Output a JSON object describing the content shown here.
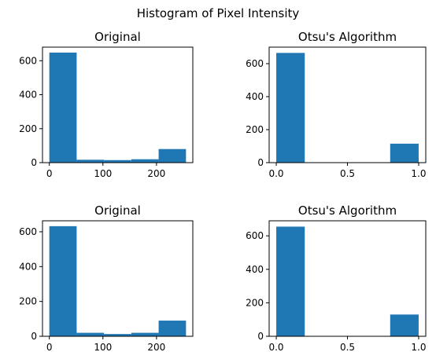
{
  "figure": {
    "title": "Histogram of Pixel Intensity"
  },
  "colors": {
    "bar": "#1f77b4",
    "axis": "#000000"
  },
  "chart_data": [
    {
      "type": "bar",
      "title": "Original",
      "bin_edges": [
        0,
        51,
        102,
        153,
        204,
        255
      ],
      "values": [
        648,
        17,
        15,
        20,
        80
      ],
      "xlim": [
        -12.75,
        267.75
      ],
      "ylim": [
        0,
        680
      ],
      "xticks": [
        0,
        100,
        200
      ],
      "yticks": [
        0,
        200,
        400,
        600
      ],
      "xtick_labels": [
        "0",
        "100",
        "200"
      ],
      "ytick_labels": [
        "0",
        "200",
        "400",
        "600"
      ]
    },
    {
      "type": "bar",
      "title": "Otsu's Algorithm",
      "bin_edges": [
        0,
        0.2,
        0.4,
        0.6,
        0.8,
        1.0
      ],
      "values": [
        665,
        0,
        0,
        0,
        115
      ],
      "xlim": [
        -0.05,
        1.05
      ],
      "ylim": [
        0,
        700
      ],
      "xticks": [
        0,
        0.5,
        1.0
      ],
      "yticks": [
        0,
        200,
        400,
        600
      ],
      "xtick_labels": [
        "0.0",
        "0.5",
        "1.0"
      ],
      "ytick_labels": [
        "0",
        "200",
        "400",
        "600"
      ]
    },
    {
      "type": "bar",
      "title": "Original",
      "bin_edges": [
        0,
        51,
        102,
        153,
        204,
        255
      ],
      "values": [
        632,
        20,
        13,
        20,
        90
      ],
      "xlim": [
        -12.75,
        267.75
      ],
      "ylim": [
        0,
        663
      ],
      "xticks": [
        0,
        100,
        200
      ],
      "yticks": [
        0,
        200,
        400,
        600
      ],
      "xtick_labels": [
        "0",
        "100",
        "200"
      ],
      "ytick_labels": [
        "0",
        "200",
        "400",
        "600"
      ]
    },
    {
      "type": "bar",
      "title": "Otsu's Algorithm",
      "bin_edges": [
        0,
        0.2,
        0.4,
        0.6,
        0.8,
        1.0
      ],
      "values": [
        655,
        0,
        0,
        0,
        130
      ],
      "xlim": [
        -0.05,
        1.05
      ],
      "ylim": [
        0,
        690
      ],
      "xticks": [
        0,
        0.5,
        1.0
      ],
      "yticks": [
        0,
        200,
        400,
        600
      ],
      "xtick_labels": [
        "0.0",
        "0.5",
        "1.0"
      ],
      "ytick_labels": [
        "0",
        "200",
        "400",
        "600"
      ]
    }
  ]
}
